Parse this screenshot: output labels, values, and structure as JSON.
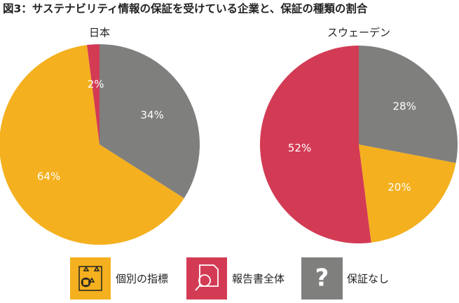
{
  "title": "図3：サステナビリティ情報の保証を受けている企業と、保証の種類の割合",
  "chart_data": [
    {
      "type": "pie",
      "title": "日本",
      "values": [
        34,
        64,
        2
      ],
      "value_labels": [
        "34%",
        "64%",
        "2%"
      ],
      "colors": [
        "#7f7f7e",
        "#f4b01e",
        "#d33b55"
      ]
    },
    {
      "type": "pie",
      "title": "スウェーデン",
      "values": [
        28,
        20,
        52
      ],
      "value_labels": [
        "28%",
        "20%",
        "52%"
      ],
      "colors": [
        "#7f7f7e",
        "#f4b01e",
        "#d33b55"
      ]
    }
  ],
  "legend": [
    {
      "name": "個別の指標",
      "color": "#f4b01e"
    },
    {
      "name": "報告書全体",
      "color": "#d33b55"
    },
    {
      "name": "保証なし",
      "color": "#7f7f7e"
    }
  ]
}
